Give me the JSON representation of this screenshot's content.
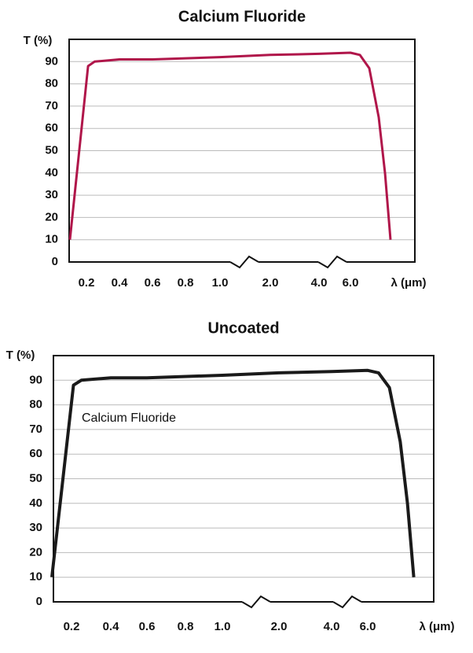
{
  "chart_data": [
    {
      "type": "line",
      "title": "Calcium Fluoride",
      "y_label": "T (%)",
      "x_label": "λ (μm)",
      "x": [
        0.1,
        0.21,
        0.25,
        0.4,
        0.6,
        1.0,
        2.0,
        4.0,
        6.0,
        6.6,
        7.2,
        7.8,
        8.2,
        8.55
      ],
      "series": [
        {
          "color": "#b0164a",
          "values": [
            10,
            88,
            90,
            91,
            91,
            92,
            93,
            93.5,
            94,
            93,
            87,
            65,
            40,
            10
          ]
        }
      ],
      "xticks": [
        0.2,
        0.4,
        0.6,
        0.8,
        {
          "value": 1,
          "label": "1.0"
        },
        {
          "value": 2,
          "label": "2.0"
        },
        {
          "value": 4,
          "label": "4.0"
        },
        {
          "value": 6,
          "label": "6.0"
        }
      ],
      "ylim": [
        0,
        100
      ],
      "yticks": [
        0,
        10,
        20,
        30,
        40,
        50,
        60,
        70,
        80,
        90
      ],
      "grid": true
    },
    {
      "type": "line",
      "title": "Uncoated",
      "y_label": "T (%)",
      "x_label": "λ (μm)",
      "annotation": "Calcium Fluoride",
      "x": [
        0.1,
        0.21,
        0.25,
        0.4,
        0.6,
        1.0,
        2.0,
        4.0,
        6.0,
        6.6,
        7.2,
        7.8,
        8.2,
        8.55
      ],
      "series": [
        {
          "color": "#1a1a1a",
          "values": [
            10,
            88,
            90,
            91,
            91,
            92,
            93,
            93.5,
            94,
            93,
            87,
            65,
            40,
            10
          ]
        }
      ],
      "xticks": [
        0.2,
        0.4,
        0.6,
        0.8,
        {
          "value": 1,
          "label": "1.0"
        },
        {
          "value": 2,
          "label": "2.0"
        },
        {
          "value": 4,
          "label": "4.0"
        },
        {
          "value": 6,
          "label": "6.0"
        }
      ],
      "ylim": [
        0,
        100
      ],
      "yticks": [
        0,
        10,
        20,
        30,
        40,
        50,
        60,
        70,
        80,
        90
      ],
      "grid": true
    }
  ]
}
